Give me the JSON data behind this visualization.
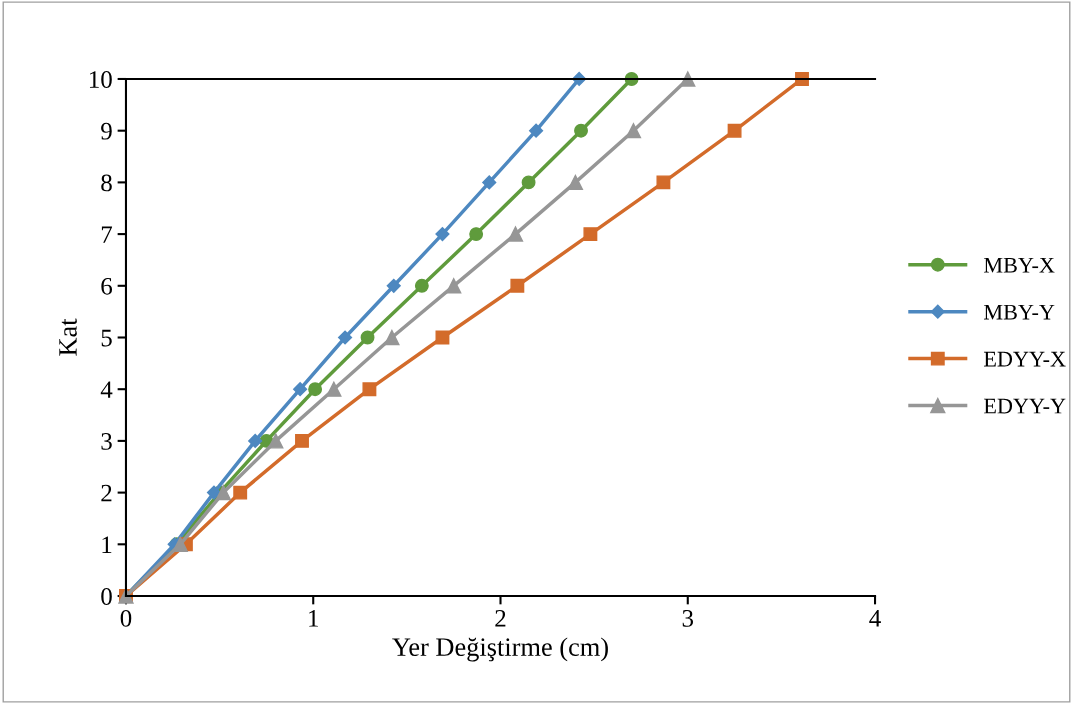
{
  "chart_data": {
    "type": "line",
    "xlabel": "Yer Değiştirme (cm)",
    "ylabel": "Kat",
    "xlim": [
      0,
      4
    ],
    "xticks": [
      0,
      1,
      2,
      3,
      4
    ],
    "ylim": [
      0,
      10
    ],
    "yticks": [
      0,
      1,
      2,
      3,
      4,
      5,
      6,
      7,
      8,
      9,
      10
    ],
    "legend": "right",
    "grid": false,
    "line_style": "solid",
    "series": [
      {
        "name": "MBY-X",
        "color": "#5f9b3c",
        "marker": "circle",
        "x": [
          0,
          0.27,
          0.5,
          0.75,
          1.01,
          1.29,
          1.58,
          1.87,
          2.15,
          2.43,
          2.7
        ],
        "values": [
          0,
          1,
          2,
          3,
          4,
          5,
          6,
          7,
          8,
          9,
          10
        ]
      },
      {
        "name": "MBY-Y",
        "color": "#4d88c0",
        "marker": "diamond",
        "x": [
          0,
          0.26,
          0.47,
          0.69,
          0.93,
          1.17,
          1.43,
          1.69,
          1.94,
          2.19,
          2.42
        ],
        "values": [
          0,
          1,
          2,
          3,
          4,
          5,
          6,
          7,
          8,
          9,
          10
        ]
      },
      {
        "name": "EDYY-X",
        "color": "#d36b2a",
        "marker": "square",
        "x": [
          0,
          0.32,
          0.61,
          0.94,
          1.3,
          1.69,
          2.09,
          2.48,
          2.87,
          3.25,
          3.61
        ],
        "values": [
          0,
          1,
          2,
          3,
          4,
          5,
          6,
          7,
          8,
          9,
          10
        ]
      },
      {
        "name": "EDYY-Y",
        "color": "#969696",
        "marker": "triangle",
        "x": [
          0,
          0.29,
          0.52,
          0.8,
          1.11,
          1.42,
          1.75,
          2.08,
          2.4,
          2.71,
          3.0
        ],
        "values": [
          0,
          1,
          2,
          3,
          4,
          5,
          6,
          7,
          8,
          9,
          10
        ]
      }
    ]
  }
}
